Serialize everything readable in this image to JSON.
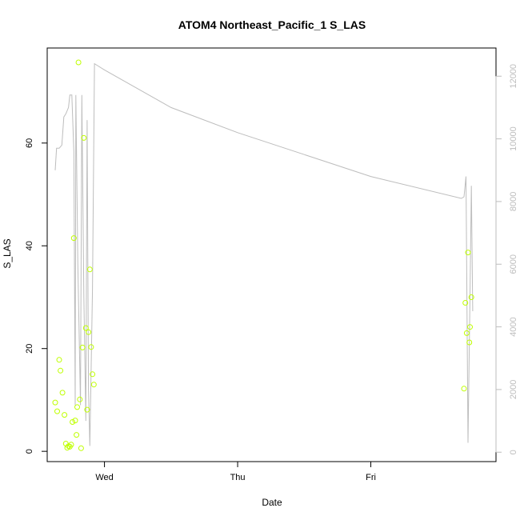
{
  "chart_data": {
    "type": "scatter",
    "title": "ATOM4 Northeast_Pacific_1 S_LAS",
    "xlabel": "Date",
    "ylabel": "S_LAS",
    "xlim": [
      -0.43,
      2.94
    ],
    "ylim": [
      -2.0,
      78.5
    ],
    "y2lim": [
      -300,
      12900
    ],
    "x_ticks": [
      {
        "value": 0,
        "label": "Wed"
      },
      {
        "value": 1,
        "label": "Thu"
      },
      {
        "value": 2,
        "label": "Fri"
      }
    ],
    "y_ticks": [
      {
        "value": 0,
        "label": "0"
      },
      {
        "value": 20,
        "label": "20"
      },
      {
        "value": 40,
        "label": "40"
      },
      {
        "value": 60,
        "label": "60"
      }
    ],
    "y2_ticks": [
      {
        "value": 0,
        "label": "0"
      },
      {
        "value": 2000,
        "label": "2000"
      },
      {
        "value": 4000,
        "label": "4000"
      },
      {
        "value": 6000,
        "label": "6000"
      },
      {
        "value": 8000,
        "label": "8000"
      },
      {
        "value": 10000,
        "label": "10000"
      },
      {
        "value": 12000,
        "label": "12000"
      }
    ],
    "grid": false,
    "colors": {
      "points": "#bfff00",
      "line": "#bdbdbd",
      "axis": "#000000",
      "right_axis": "#bdbdbd"
    },
    "series": [
      {
        "type": "scatter",
        "axis": "left",
        "points": [
          [
            -0.37,
            9.5
          ],
          [
            -0.355,
            7.8
          ],
          [
            -0.34,
            17.8
          ],
          [
            -0.33,
            15.7
          ],
          [
            -0.315,
            11.4
          ],
          [
            -0.3,
            7.1
          ],
          [
            -0.29,
            1.5
          ],
          [
            -0.28,
            0.7
          ],
          [
            -0.27,
            1.0
          ],
          [
            -0.26,
            0.9
          ],
          [
            -0.25,
            1.3
          ],
          [
            -0.24,
            5.7
          ],
          [
            -0.23,
            41.5
          ],
          [
            -0.22,
            6.0
          ],
          [
            -0.21,
            3.2
          ],
          [
            -0.205,
            8.6
          ],
          [
            -0.195,
            75.7
          ],
          [
            -0.185,
            10.1
          ],
          [
            -0.175,
            0.6
          ],
          [
            -0.165,
            20.2
          ],
          [
            -0.155,
            61.0
          ],
          [
            -0.14,
            24.0
          ],
          [
            -0.13,
            8.1
          ],
          [
            -0.12,
            23.2
          ],
          [
            -0.11,
            35.4
          ],
          [
            -0.1,
            20.3
          ],
          [
            -0.09,
            15.0
          ],
          [
            -0.08,
            13.0
          ],
          [
            2.7,
            12.2
          ],
          [
            2.71,
            28.9
          ],
          [
            2.72,
            23.0
          ],
          [
            2.73,
            38.7
          ],
          [
            2.74,
            21.2
          ],
          [
            2.745,
            24.2
          ],
          [
            2.755,
            30.0
          ]
        ]
      },
      {
        "type": "line",
        "axis": "right",
        "points": [
          [
            -0.37,
            9000
          ],
          [
            -0.36,
            9700
          ],
          [
            -0.34,
            9700
          ],
          [
            -0.32,
            9800
          ],
          [
            -0.305,
            10700
          ],
          [
            -0.29,
            10800
          ],
          [
            -0.27,
            11000
          ],
          [
            -0.26,
            11400
          ],
          [
            -0.245,
            11400
          ],
          [
            -0.23,
            9600
          ],
          [
            -0.22,
            1500
          ],
          [
            -0.215,
            11400
          ],
          [
            -0.2,
            6000
          ],
          [
            -0.18,
            1500
          ],
          [
            -0.17,
            11400
          ],
          [
            -0.155,
            5000
          ],
          [
            -0.14,
            1000
          ],
          [
            -0.13,
            10600
          ],
          [
            -0.12,
            2000
          ],
          [
            -0.11,
            200
          ],
          [
            -0.09,
            5200
          ],
          [
            -0.075,
            12400
          ],
          [
            0.0,
            12200
          ],
          [
            0.5,
            11000
          ],
          [
            1.0,
            10200
          ],
          [
            1.5,
            9500
          ],
          [
            2.0,
            8800
          ],
          [
            2.68,
            8100
          ],
          [
            2.7,
            8150
          ],
          [
            2.715,
            8800
          ],
          [
            2.73,
            300
          ],
          [
            2.745,
            5000
          ],
          [
            2.755,
            8500
          ],
          [
            2.765,
            4500
          ]
        ]
      }
    ]
  }
}
